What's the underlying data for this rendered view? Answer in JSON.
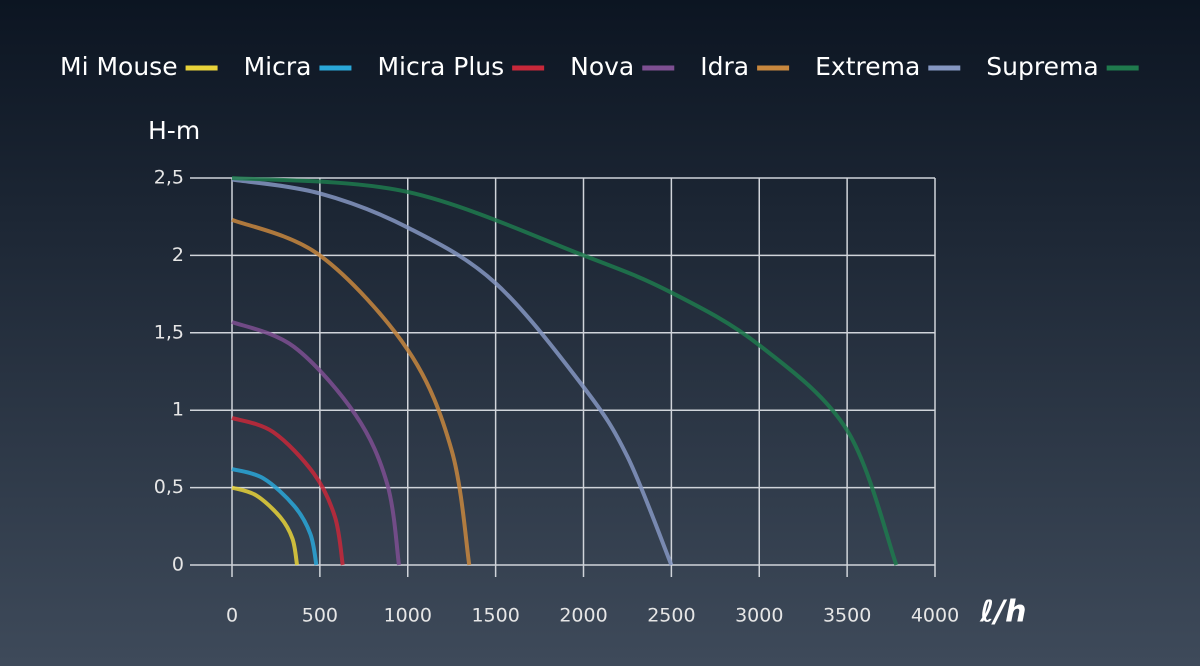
{
  "chart_data": {
    "type": "line",
    "xlabel": "ℓ/h",
    "ylabel": "H-m",
    "xlim": [
      0,
      4000
    ],
    "ylim": [
      0,
      2.5
    ],
    "xticks": [
      0,
      500,
      1000,
      1500,
      2000,
      2500,
      3000,
      3500,
      4000
    ],
    "yticks": [
      0,
      {
        "value": 0.5,
        "label": "0,5"
      },
      1,
      {
        "value": 1.5,
        "label": "1,5"
      },
      2,
      {
        "value": 2.5,
        "label": "2,5"
      }
    ],
    "grid": true,
    "series": [
      {
        "name": "Mi Mouse",
        "color": "#e8d23a",
        "x": [
          0,
          137,
          274,
          344,
          370
        ],
        "values": [
          0.5,
          0.45,
          0.31,
          0.17,
          0
        ]
      },
      {
        "name": "Micra",
        "color": "#2aa7d8",
        "x": [
          0,
          178,
          355,
          446,
          480
        ],
        "values": [
          0.62,
          0.56,
          0.38,
          0.2,
          0
        ]
      },
      {
        "name": "Micra Plus",
        "color": "#c8283a",
        "x": [
          0,
          233,
          466,
          586,
          630
        ],
        "values": [
          0.95,
          0.86,
          0.59,
          0.31,
          0
        ]
      },
      {
        "name": "Nova",
        "color": "#7e4f92",
        "x": [
          0,
          352,
          703,
          884,
          950
        ],
        "values": [
          1.57,
          1.41,
          0.97,
          0.52,
          0
        ]
      },
      {
        "name": "Idra",
        "color": "#c8873e",
        "x": [
          0,
          500,
          1000,
          1250,
          1350
        ],
        "values": [
          2.23,
          2.0,
          1.39,
          0.74,
          0
        ]
      },
      {
        "name": "Extrema",
        "color": "#8597c2",
        "x": [
          0,
          500,
          1000,
          1500,
          2000,
          2250,
          2500
        ],
        "values": [
          2.49,
          2.4,
          2.18,
          1.82,
          1.15,
          0.7,
          0
        ]
      },
      {
        "name": "Suprema",
        "color": "#1f7a4d",
        "x": [
          0,
          1000,
          2000,
          2500,
          3000,
          3500,
          3780
        ],
        "values": [
          2.5,
          2.41,
          2.0,
          1.76,
          1.42,
          0.87,
          0
        ]
      }
    ]
  }
}
